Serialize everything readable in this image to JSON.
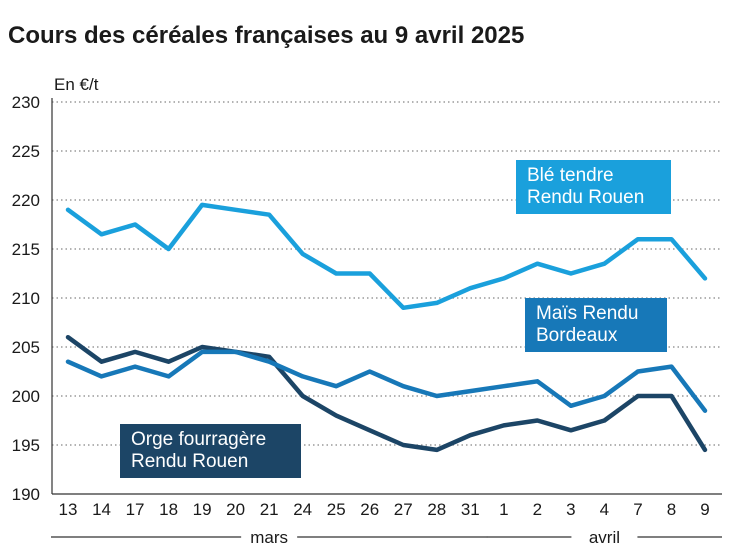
{
  "title": "Cours des céréales françaises au 9 avril 2025",
  "colors": {
    "ble": "#1aa0dc",
    "mais": "#1778b8",
    "orge": "#1c4566",
    "grid": "#9a9a9a",
    "axis": "#333333"
  },
  "chart_data": {
    "type": "line",
    "ylabel": "En €/t",
    "ylim": [
      190,
      230
    ],
    "yticks": [
      190,
      195,
      200,
      205,
      210,
      215,
      220,
      225,
      230
    ],
    "grid": "horizontal dotted",
    "categories": [
      "13",
      "14",
      "17",
      "18",
      "19",
      "20",
      "21",
      "24",
      "25",
      "26",
      "27",
      "28",
      "31",
      "1",
      "2",
      "3",
      "4",
      "7",
      "8",
      "9"
    ],
    "months": [
      {
        "label": "mars",
        "from": 0,
        "to": 12
      },
      {
        "label": "avril",
        "from": 13,
        "to": 19
      }
    ],
    "series": [
      {
        "key": "ble",
        "name_lines": [
          "Blé tendre",
          "Rendu Rouen"
        ],
        "values": [
          219,
          216.5,
          217.5,
          215,
          219.5,
          219,
          218.5,
          214.5,
          212.5,
          212.5,
          209,
          209.5,
          211,
          212,
          213.5,
          212.5,
          213.5,
          216,
          216,
          212
        ]
      },
      {
        "key": "mais",
        "name_lines": [
          "Maïs Rendu",
          "Bordeaux"
        ],
        "values": [
          203.5,
          202,
          203,
          202,
          204.5,
          204.5,
          203.5,
          202,
          201,
          202.5,
          201,
          200,
          200.5,
          201,
          201.5,
          199,
          200,
          202.5,
          203,
          198.5
        ]
      },
      {
        "key": "orge",
        "name_lines": [
          "Orge fourragère",
          "Rendu Rouen"
        ],
        "values": [
          206,
          203.5,
          204.5,
          203.5,
          205,
          204.5,
          204,
          200,
          198,
          196.5,
          195,
          194.5,
          196,
          197,
          197.5,
          196.5,
          197.5,
          200,
          200,
          194.5
        ]
      }
    ]
  }
}
